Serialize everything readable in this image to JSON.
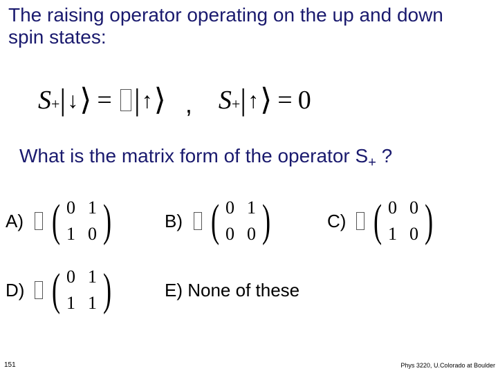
{
  "heading1": "The raising operator operating on the up and down spin states:",
  "heading2_pre": "What is the matrix form of the operator S",
  "heading2_sub": "+",
  "heading2_post": " ?",
  "equations": {
    "eq1": {
      "op": "S",
      "op_sub": "+",
      "ket_in": "↓",
      "equals": "=",
      "ket_out": "↑"
    },
    "comma": ",",
    "eq2": {
      "op": "S",
      "op_sub": "+",
      "ket_in": "↑",
      "equals": "=",
      "result": "0"
    }
  },
  "options": {
    "A": {
      "label": "A)",
      "matrix": [
        [
          "0",
          "1"
        ],
        [
          "1",
          "0"
        ]
      ]
    },
    "B": {
      "label": "B)",
      "matrix": [
        [
          "0",
          "1"
        ],
        [
          "0",
          "0"
        ]
      ]
    },
    "C": {
      "label": "C)",
      "matrix": [
        [
          "0",
          "0"
        ],
        [
          "1",
          "0"
        ]
      ]
    },
    "D": {
      "label": "D)",
      "matrix": [
        [
          "0",
          "1"
        ],
        [
          "1",
          "1"
        ]
      ]
    },
    "E": {
      "label": "E) None of these"
    }
  },
  "footer": {
    "slide_no": "151",
    "credit": "Phys 3220, U.Colorado at Boulder"
  },
  "colors": {
    "heading": "#1a1a6e",
    "text": "#000000",
    "background": "#ffffff"
  },
  "fonts": {
    "body": "Arial",
    "math": "Times New Roman",
    "heading_size_pt": 28,
    "option_size_pt": 26
  }
}
